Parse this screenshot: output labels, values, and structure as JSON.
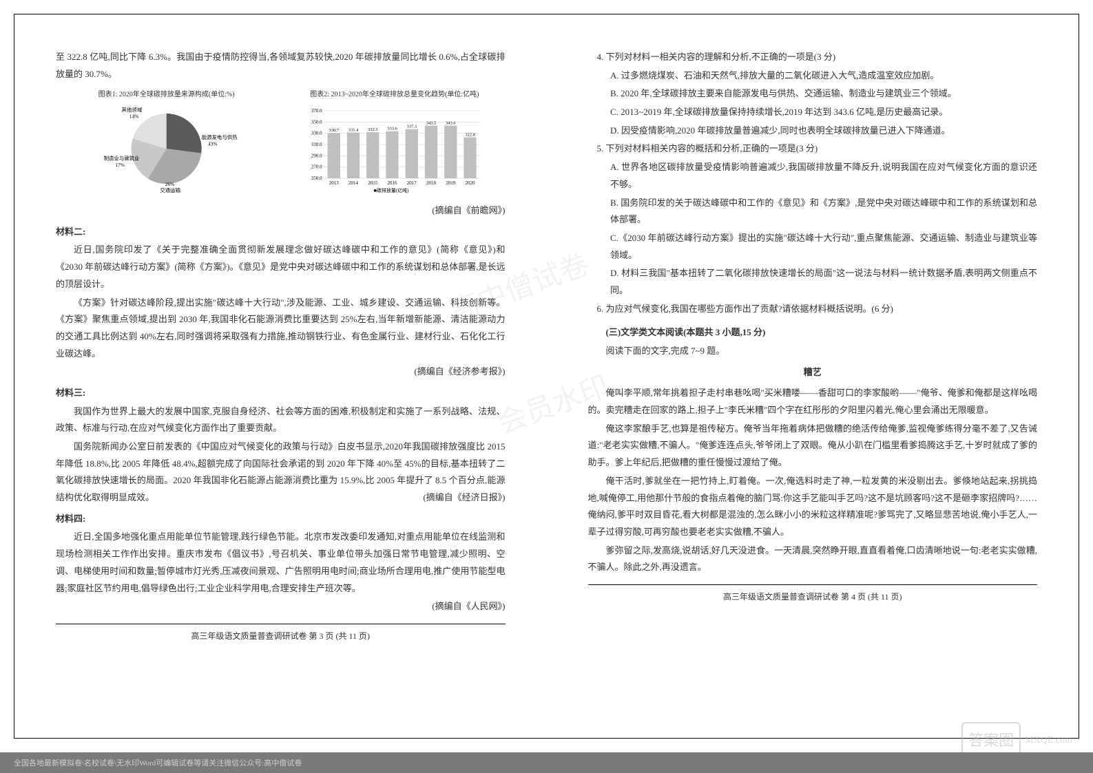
{
  "left": {
    "intro": "至 322.8 亿吨,同比下降 6.3%。我国由于疫情防控得当,各领域复苏较快,2020 年碳排放量同比增长 0.6%,占全球碳排放量的 30.7%。",
    "chart1": {
      "title": "图表1: 2020年全球碳排放量来源构成(单位:%)",
      "slices": [
        {
          "label": "能源发电与供热",
          "pct": 43,
          "color": "#5a5a5a"
        },
        {
          "label": "交通运输",
          "pct": 26,
          "color": "#a8a8a8"
        },
        {
          "label": "制造业与建筑业",
          "pct": 17,
          "color": "#c8c8c8"
        },
        {
          "label": "其他领域",
          "pct": 14,
          "color": "#e0e0e0"
        }
      ]
    },
    "chart2": {
      "title": "图表2: 2013~2020年全球碳排放总量变化趋势(单位:亿吨)",
      "legend": "碳排放量(亿吨)",
      "ylim": [
        250,
        370
      ],
      "ytick_step": 20,
      "categories": [
        "2013",
        "2014",
        "2015",
        "2016",
        "2017",
        "2018",
        "2019",
        "2020"
      ],
      "values": [
        330.7,
        331.4,
        332.1,
        333.6,
        337.3,
        343.5,
        343.6,
        322.8
      ],
      "bar_color": "#bfbfbf",
      "background_color": "#ffffff"
    },
    "source1": "(摘编自《前瞻网》)",
    "m2_heading": "材料二:",
    "m2_p1": "近日,国务院印发了《关于完整准确全面贯彻新发展理念做好碳达峰碳中和工作的意见》(简称《意见》)和《2030 年前碳达峰行动方案》(简称《方案》)。《意见》是党中央对碳达峰碳中和工作的系统谋划和总体部署,是长远的顶层设计。",
    "m2_p2": "《方案》针对碳达峰阶段,提出实施\"碳达峰十大行动\",涉及能源、工业、城乡建设、交通运输、科技创新等。《方案》聚焦重点领域,提出到 2030 年,我国非化石能源消费比重要达到 25%左右,当年新增新能源、清洁能源动力的交通工具比例达到 40%左右,同时强调将采取强有力措施,推动钢铁行业、有色金属行业、建材行业、石化化工行业碳达峰。",
    "source2": "(摘编自《经济参考报》)",
    "m3_heading": "材料三:",
    "m3_p1": "我国作为世界上最大的发展中国家,克服自身经济、社会等方面的困难,积极制定和实施了一系列战略、法规、政策、标准与行动,在应对气候变化方面作出了重要贡献。",
    "m3_p2": "国务院新闻办公室日前发表的《中国应对气候变化的政策与行动》白皮书显示,2020年我国碳排放强度比 2015 年降低 18.8%,比 2005 年降低 48.4%,超额完成了向国际社会承诺的到 2020 年下降 40%至 45%的目标,基本扭转了二氧化碳排放快速增长的局面。2020 年我国非化石能源占能源消费比重为 15.9%,比 2005 年提升了 8.5 个百分点,能源结构优化取得明显成效。",
    "source3_inline": "(摘编自《经济日报》)",
    "m4_heading": "材料四:",
    "m4_p1": "近日,全国多地强化重点用能单位节能管理,践行绿色节能。北京市发改委印发通知,对重点用能单位在线监测和现场检测相关工作作出安排。重庆市发布《倡议书》,号召机关、事业单位带头加强日常节电管理,减少照明、空调、电梯使用时间和数量;暂停城市灯光秀,压减夜间景观、广告照明用电时间;商业场所合理用电,推广使用节能型电器;家庭社区节约用电,倡导绿色出行;工业企业科学用电,合理安排生产班次等。",
    "source4": "(摘编自《人民网》)",
    "footer": "高三年级语文质量普查调研试卷 第 3 页  (共 11 页)"
  },
  "right": {
    "q4": "4. 下列对材料一相关内容的理解和分析,不正确的一项是(3 分)",
    "q4a": "A. 过多燃烧煤炭、石油和天然气,排放大量的二氧化碳进入大气,造成温室效应加剧。",
    "q4b": "B. 2020 年,全球碳排放主要来自能源发电与供热、交通运输、制造业与建筑业三个领域。",
    "q4c": "C. 2013~2019 年,全球碳排放量保持持续增长,2019 年达到 343.6 亿吨,是历史最高记录。",
    "q4d": "D. 因受疫情影响,2020 年碳排放量普遍减少,同时也表明全球碳排放量已进入下降通道。",
    "q5": "5. 下列对材料相关内容的概括和分析,正确的一项是(3 分)",
    "q5a": "A. 世界各地区碳排放量受疫情影响普遍减少,我国碳排放量不降反升,说明我国在应对气候变化方面的意识还不够。",
    "q5b": "B. 国务院印发的关于碳达峰碳中和工作的《意见》和《方案》,是党中央对碳达峰碳中和工作的系统谋划和总体部署。",
    "q5c": "C.《2030 年前碳达峰行动方案》提出的实施\"碳达峰十大行动\",重点聚焦能源、交通运输、制造业与建筑业等领域。",
    "q5d": "D. 材料三我国\"基本扭转了二氧化碳排放快速增长的局面\"这一说法与材料一统计数据矛盾,表明两文侧重点不同。",
    "q6": "6. 为应对气候变化,我国在哪些方面作出了贡献?请依据材料概括说明。(6 分)",
    "section3": "(三)文学类文本阅读(本题共 3 小题,15 分)",
    "section3_sub": "阅读下面的文字,完成 7~9 题。",
    "story_title": "糟艺",
    "story_p1": "俺叫李平顺,常年挑着担子走村串巷吆喝\"买米糟喽——香甜可口的李家酸哟——\"俺爷、俺爹和俺都是这样吆喝的。卖完糟走在回家的路上,担子上\"李氏米糟\"四个字在红彤彤的夕阳里闪着光,俺心里会涌出无限暖意。",
    "story_p2": "俺这李家酿手艺,也算是祖传秘方。俺爷当年拖着病体把做糟的绝活传给俺爹,监视俺爹练得分毫不差了,又告诫道:\"老老实实做糟,不骗人。\"俺爹连连点头,爷爷闭上了双眼。俺从小趴在门槛里看爹捣腾这手艺,十岁时就成了爹的助手。爹上年纪后,把做糟的重任慢慢过渡给了俺。",
    "story_p3": "俺干活时,爹就坐在一把竹持上,盯着俺。一次,俺选料时走了神,一粒发黄的米没剔出去。爹倏地站起来,拐挑捣地,喊俺停工,用他那什节般的食指点着俺的脑门骂:你这手艺能叫手艺吗?这不是坑顾客吗?这不是砸李家招牌吗?……俺纳闷,爹平时双目昏花,看大树都是混浊的,怎么眯小小的米粒这样精准呢?爹骂完了,又略显悲苦地说,俺小手艺人,一辈子过得穷酸,可再穷酸也要老老实实做糟,不骗人。",
    "story_p4": "爹弥留之际,发高烧,说胡话,好几天没进食。一天清晨,突然睁开眼,直直看着俺,口齿清晰地说一句:老老实实做糟,不骗人。除此之外,再没遗言。",
    "footer": "高三年级语文质量普查调研试卷  第 4 页  (共 11 页)"
  },
  "watermark1": "高中僧试卷",
  "watermark2": "会员水印",
  "bottom_text": "全国各地最新模拟卷\\名校试卷\\无水印Word可编辑试卷等请关注微信公众号:高中僧试卷",
  "mxqe": "MXQE.com",
  "answer_box": "答案圈"
}
